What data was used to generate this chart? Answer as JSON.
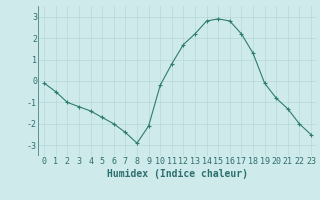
{
  "x": [
    0,
    1,
    2,
    3,
    4,
    5,
    6,
    7,
    8,
    9,
    10,
    11,
    12,
    13,
    14,
    15,
    16,
    17,
    18,
    19,
    20,
    21,
    22,
    23
  ],
  "y": [
    -0.1,
    -0.5,
    -1.0,
    -1.2,
    -1.4,
    -1.7,
    -2.0,
    -2.4,
    -2.9,
    -2.1,
    -0.2,
    0.8,
    1.7,
    2.2,
    2.8,
    2.9,
    2.8,
    2.2,
    1.3,
    -0.1,
    -0.8,
    -1.3,
    -2.0,
    -2.5
  ],
  "line_color": "#2e7d6e",
  "marker": "+",
  "marker_size": 3,
  "marker_color": "#2e7d6e",
  "bg_color": "#ceeaea",
  "grid_color": "#b8d8d8",
  "xlabel": "Humidex (Indice chaleur)",
  "xlabel_fontsize": 7,
  "xlabel_color": "#2e6e6e",
  "tick_color": "#2e6e6e",
  "tick_fontsize": 6,
  "ylim": [
    -3.5,
    3.5
  ],
  "yticks": [
    -3,
    -2,
    -1,
    0,
    1,
    2,
    3
  ],
  "xlim": [
    -0.5,
    23.5
  ],
  "xticks": [
    0,
    1,
    2,
    3,
    4,
    5,
    6,
    7,
    8,
    9,
    10,
    11,
    12,
    13,
    14,
    15,
    16,
    17,
    18,
    19,
    20,
    21,
    22,
    23
  ]
}
